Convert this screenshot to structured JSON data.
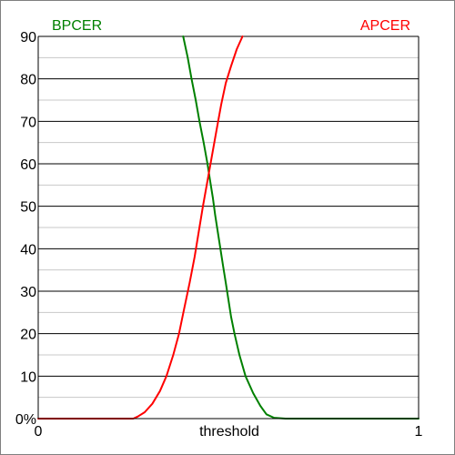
{
  "chart_data": {
    "type": "line",
    "xlabel": "threshold",
    "x_tick_labels": [
      "0",
      "1"
    ],
    "xlim": [
      0,
      1
    ],
    "ylim": [
      0,
      90
    ],
    "y_tick_labels": [
      "0%",
      "10",
      "20",
      "30",
      "40",
      "50",
      "60",
      "70",
      "80",
      "90"
    ],
    "y_ticks": [
      0,
      10,
      20,
      30,
      40,
      50,
      60,
      70,
      80,
      90
    ],
    "y_minor_ticks": [
      5,
      15,
      25,
      35,
      45,
      55,
      65,
      75,
      85
    ],
    "grid": true,
    "colors": {
      "major_grid": "#000000",
      "minor_grid": "#c8c8c8",
      "axis": "#000000",
      "frame": "#7f7f7f"
    },
    "series": [
      {
        "name": "BPCER",
        "color": "#008000",
        "legend_position": "top-left",
        "points": [
          [
            0.381,
            90
          ],
          [
            0.393,
            85
          ],
          [
            0.403,
            80
          ],
          [
            0.414,
            75
          ],
          [
            0.424,
            70
          ],
          [
            0.435,
            65
          ],
          [
            0.445,
            60
          ],
          [
            0.452,
            56
          ],
          [
            0.459,
            52
          ],
          [
            0.465,
            48
          ],
          [
            0.472,
            44
          ],
          [
            0.479,
            40
          ],
          [
            0.486,
            36
          ],
          [
            0.493,
            32
          ],
          [
            0.5,
            28
          ],
          [
            0.507,
            24
          ],
          [
            0.516,
            20
          ],
          [
            0.529,
            15
          ],
          [
            0.545,
            10
          ],
          [
            0.565,
            6
          ],
          [
            0.584,
            3
          ],
          [
            0.6,
            1
          ],
          [
            0.62,
            0.2
          ],
          [
            0.65,
            0
          ],
          [
            1.0,
            0
          ]
        ]
      },
      {
        "name": "APCER",
        "color": "#ff0000",
        "legend_position": "top-right",
        "points": [
          [
            0,
            0
          ],
          [
            0.25,
            0
          ],
          [
            0.262,
            0.5
          ],
          [
            0.28,
            1.5
          ],
          [
            0.3,
            3.5
          ],
          [
            0.32,
            6.5
          ],
          [
            0.337,
            10
          ],
          [
            0.355,
            15
          ],
          [
            0.37,
            20
          ],
          [
            0.384,
            26
          ],
          [
            0.398,
            32
          ],
          [
            0.411,
            38
          ],
          [
            0.422,
            44
          ],
          [
            0.433,
            50
          ],
          [
            0.445,
            56
          ],
          [
            0.457,
            62
          ],
          [
            0.469,
            68
          ],
          [
            0.481,
            74
          ],
          [
            0.493,
            79
          ],
          [
            0.507,
            83
          ],
          [
            0.522,
            87
          ],
          [
            0.537,
            90
          ]
        ]
      }
    ]
  }
}
